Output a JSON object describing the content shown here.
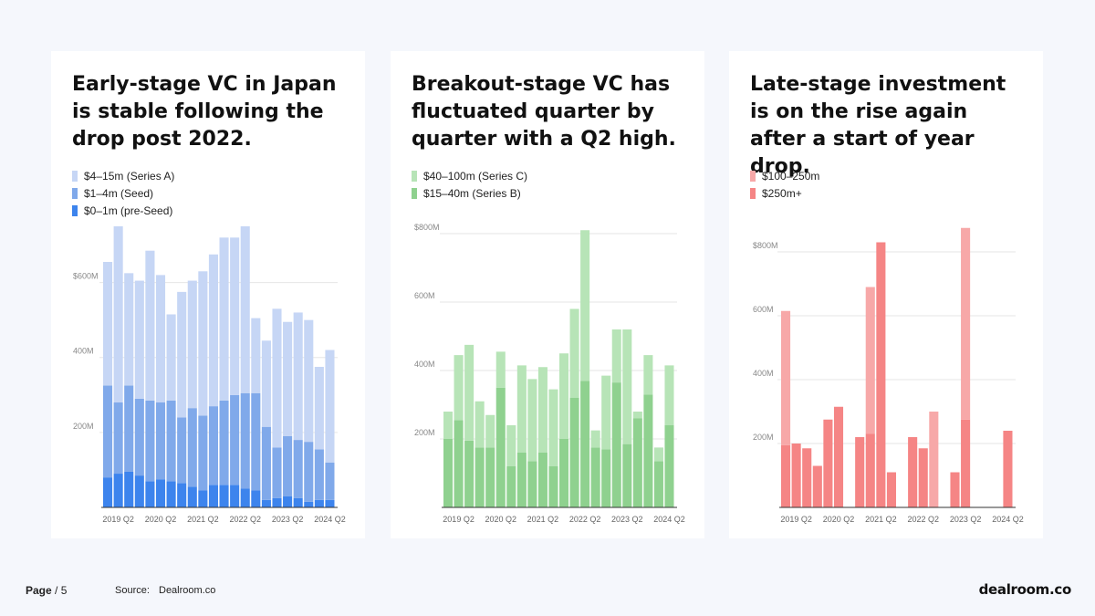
{
  "panels": [
    {
      "title": "Early-stage VC in Japan is stable following the drop post 2022."
    },
    {
      "title": "Breakout-stage VC has fluctuated quarter by quarter with a Q2 high."
    },
    {
      "title": "Late-stage investment is on the rise again after a start of year drop."
    }
  ],
  "chart_data": [
    {
      "type": "bar",
      "stacked": true,
      "categories": [
        "2019 Q1",
        "2019 Q2",
        "2019 Q3",
        "2019 Q4",
        "2020 Q1",
        "2020 Q2",
        "2020 Q3",
        "2020 Q4",
        "2021 Q1",
        "2021 Q2",
        "2021 Q3",
        "2021 Q4",
        "2022 Q1",
        "2022 Q2",
        "2022 Q3",
        "2022 Q4",
        "2023 Q1",
        "2023 Q2",
        "2023 Q3",
        "2023 Q4",
        "2024 Q1",
        "2024 Q2"
      ],
      "tick_labels": [
        "2019 Q2",
        "2020 Q2",
        "2021 Q2",
        "2022 Q2",
        "2023 Q2",
        "2024 Q2"
      ],
      "tick_label_indices": [
        1,
        5,
        9,
        13,
        17,
        21
      ],
      "series": [
        {
          "name": "$0–1m (pre-Seed)",
          "color": "#3d84ed",
          "values": [
            80,
            90,
            95,
            85,
            70,
            75,
            70,
            65,
            55,
            45,
            60,
            60,
            60,
            50,
            45,
            20,
            25,
            30,
            25,
            15,
            20,
            20
          ]
        },
        {
          "name": "$1–4m (Seed)",
          "color": "#80a9ea",
          "values": [
            245,
            190,
            230,
            205,
            215,
            205,
            215,
            175,
            210,
            200,
            210,
            225,
            240,
            255,
            260,
            195,
            135,
            160,
            155,
            160,
            135,
            100
          ]
        },
        {
          "name": "$4–15m (Series A)",
          "color": "#c6d6f5",
          "values": [
            330,
            470,
            300,
            315,
            400,
            340,
            230,
            335,
            340,
            385,
            405,
            435,
            420,
            445,
            200,
            230,
            370,
            305,
            340,
            325,
            220,
            300
          ]
        }
      ],
      "legend": [
        "$4–15m (Series A)",
        "$1–4m (Seed)",
        "$0–1m (pre-Seed)"
      ],
      "legend_colors": [
        "#c6d6f5",
        "#80a9ea",
        "#3d84ed"
      ],
      "yticks": [
        {
          "value": 200,
          "label": "200M"
        },
        {
          "value": 400,
          "label": "400M"
        },
        {
          "value": 600,
          "label": "$600M"
        }
      ],
      "ylim": [
        0,
        750
      ]
    },
    {
      "type": "bar",
      "stacked": true,
      "categories": [
        "2019 Q1",
        "2019 Q2",
        "2019 Q3",
        "2019 Q4",
        "2020 Q1",
        "2020 Q2",
        "2020 Q3",
        "2020 Q4",
        "2021 Q1",
        "2021 Q2",
        "2021 Q3",
        "2021 Q4",
        "2022 Q1",
        "2022 Q2",
        "2022 Q3",
        "2022 Q4",
        "2023 Q1",
        "2023 Q2",
        "2023 Q3",
        "2023 Q4",
        "2024 Q1",
        "2024 Q2"
      ],
      "tick_labels": [
        "2019 Q2",
        "2020 Q2",
        "2021 Q2",
        "2022 Q2",
        "2023 Q2",
        "2024 Q2"
      ],
      "tick_label_indices": [
        1,
        5,
        9,
        13,
        17,
        21
      ],
      "series": [
        {
          "name": "$15–40m (Series B)",
          "color": "#8fd18f",
          "values": [
            200,
            255,
            195,
            175,
            175,
            350,
            120,
            160,
            135,
            160,
            120,
            200,
            320,
            370,
            175,
            170,
            365,
            185,
            260,
            330,
            135,
            240
          ]
        },
        {
          "name": "$40–100m (Series C)",
          "color": "#b7e4b7",
          "values": [
            80,
            190,
            280,
            135,
            95,
            105,
            120,
            255,
            240,
            250,
            225,
            250,
            260,
            440,
            50,
            215,
            155,
            335,
            20,
            115,
            40,
            175
          ]
        }
      ],
      "legend": [
        "$40–100m (Series C)",
        "$15–40m (Series B)"
      ],
      "legend_colors": [
        "#b7e4b7",
        "#8fd18f"
      ],
      "yticks": [
        {
          "value": 200,
          "label": "200M"
        },
        {
          "value": 400,
          "label": "400M"
        },
        {
          "value": 600,
          "label": "600M"
        },
        {
          "value": 800,
          "label": "$800M"
        }
      ],
      "ylim": [
        0,
        800
      ]
    },
    {
      "type": "bar",
      "stacked": true,
      "categories": [
        "2019 Q1",
        "2019 Q2",
        "2019 Q3",
        "2019 Q4",
        "2020 Q1",
        "2020 Q2",
        "2020 Q3",
        "2020 Q4",
        "2021 Q1",
        "2021 Q2",
        "2021 Q3",
        "2021 Q4",
        "2022 Q1",
        "2022 Q2",
        "2022 Q3",
        "2022 Q4",
        "2023 Q1",
        "2023 Q2",
        "2023 Q3",
        "2023 Q4",
        "2024 Q1",
        "2024 Q2"
      ],
      "tick_labels": [
        "2019 Q2",
        "2020 Q2",
        "2021 Q2",
        "2022 Q2",
        "2023 Q2",
        "2024 Q2"
      ],
      "tick_label_indices": [
        1,
        5,
        9,
        13,
        17,
        21
      ],
      "series": [
        {
          "name": "$250m+",
          "color": "#f58585",
          "values": [
            195,
            200,
            185,
            130,
            275,
            315,
            0,
            220,
            230,
            830,
            110,
            0,
            220,
            185,
            0,
            0,
            110,
            275,
            0,
            0,
            0,
            240
          ]
        },
        {
          "name": "$100–250m",
          "color": "#f7a8a8",
          "values": [
            420,
            0,
            0,
            0,
            0,
            0,
            0,
            0,
            460,
            0,
            0,
            0,
            0,
            0,
            300,
            0,
            0,
            600,
            0,
            0,
            0,
            0
          ]
        }
      ],
      "legend": [
        "$100–250m",
        "$250m+"
      ],
      "legend_colors": [
        "#f7a8a8",
        "#f58585"
      ],
      "yticks": [
        {
          "value": 200,
          "label": "200M"
        },
        {
          "value": 400,
          "label": "400M"
        },
        {
          "value": 600,
          "label": "600M"
        },
        {
          "value": 800,
          "label": "$800M"
        }
      ],
      "ylim": [
        0,
        900
      ]
    }
  ],
  "footer": {
    "page_label": "Page",
    "page_number": "/ 5",
    "source_label": "Source:",
    "source_value": "Dealroom.co",
    "logo": "dealroom.co"
  }
}
